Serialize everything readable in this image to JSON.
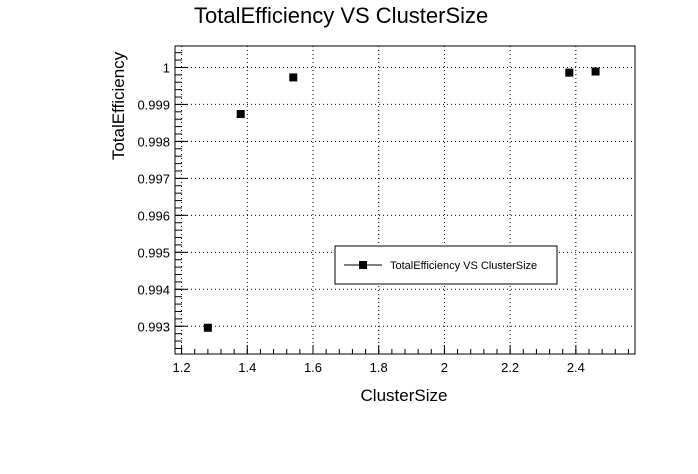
{
  "chart_data": {
    "type": "scatter",
    "title": "TotalEfficiency VS ClusterSize",
    "xlabel": "ClusterSize",
    "ylabel": "TotalEfficiency",
    "xlim": [
      1.18,
      2.58
    ],
    "ylim": [
      0.99225,
      1.00058
    ],
    "x_ticks": [
      1.2,
      1.4,
      1.6,
      1.8,
      2.0,
      2.2,
      2.4
    ],
    "x_tick_labels": [
      "1.2",
      "1.4",
      "1.6",
      "1.8",
      "2",
      "2.2",
      "2.4"
    ],
    "y_ticks": [
      0.993,
      0.994,
      0.995,
      0.996,
      0.997,
      0.998,
      0.999,
      1.0
    ],
    "y_tick_labels": [
      "0.993",
      "0.994",
      "0.995",
      "0.996",
      "0.997",
      "0.998",
      "0.999",
      "1"
    ],
    "grid": true,
    "legend_position": "center-right",
    "series": [
      {
        "name": "TotalEfficiency VS ClusterSize",
        "marker": "square",
        "color": "#000000",
        "points": [
          {
            "x": 1.28,
            "y": 0.99296
          },
          {
            "x": 1.38,
            "y": 0.99874
          },
          {
            "x": 1.54,
            "y": 0.99973
          },
          {
            "x": 2.38,
            "y": 0.99986
          },
          {
            "x": 2.46,
            "y": 0.99989
          }
        ]
      }
    ]
  }
}
